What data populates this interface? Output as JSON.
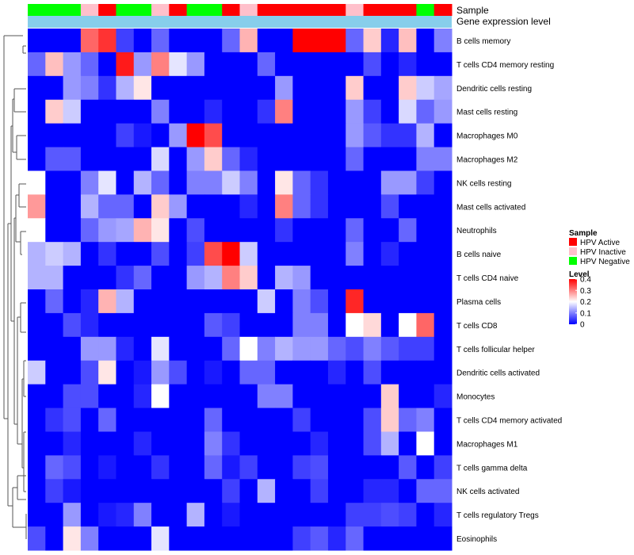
{
  "chart_data": {
    "type": "heatmap",
    "title": "",
    "annotation_track_labels": [
      "Sample",
      "Gene expression level"
    ],
    "sample_groups": [
      "HPV Negative",
      "HPV Negative",
      "HPV Negative",
      "HPV Inactive",
      "HPV Active",
      "HPV Negative",
      "HPV Negative",
      "HPV Inactive",
      "HPV Active",
      "HPV Negative",
      "HPV Negative",
      "HPV Active",
      "HPV Inactive",
      "HPV Active",
      "HPV Active",
      "HPV Active",
      "HPV Active",
      "HPV Active",
      "HPV Inactive",
      "HPV Active",
      "HPV Active",
      "HPV Active",
      "HPV Negative",
      "HPV Active"
    ],
    "sample_colors": {
      "HPV Active": "#ff0000",
      "HPV Inactive": "#ffc0cb",
      "HPV Negative": "#00ff00"
    },
    "expression_track_color": "#87ceeb",
    "rows": [
      "B cells memory",
      "T cells CD4 memory resting",
      "Dendritic cells resting",
      "Mast cells resting",
      "Macrophages M0",
      "Macrophages M2",
      "NK cells resting",
      "Mast cells activated",
      "Neutrophils",
      "B cells naive",
      "T cells CD4 naive",
      "Plasma cells",
      "T cells CD8",
      "T cells follicular helper",
      "Dendritic cells activated",
      "Monocytes",
      "T cells CD4 memory activated",
      "Macrophages M1",
      "T cells gamma delta",
      "NK cells activated",
      "T cells regulatory  Tregs",
      "Eosinophils"
    ],
    "values": [
      [
        0,
        0,
        0,
        0.32,
        0.36,
        0.05,
        0,
        0.08,
        0,
        0,
        0,
        0.08,
        0.26,
        0,
        0,
        0.4,
        0.4,
        0.4,
        0.08,
        0.24,
        0.03,
        0.25,
        0,
        0.1
      ],
      [
        0.08,
        0.25,
        0.12,
        0.08,
        0,
        0.38,
        0.12,
        0.3,
        0.18,
        0.12,
        0,
        0,
        0,
        0.08,
        0,
        0,
        0,
        0,
        0,
        0.06,
        0,
        0.03,
        0,
        0
      ],
      [
        0,
        0,
        0.12,
        0.1,
        0.04,
        0.14,
        0.22,
        0,
        0,
        0,
        0,
        0,
        0,
        0,
        0.12,
        0,
        0,
        0,
        0.24,
        0,
        0,
        0.24,
        0.16,
        0.13
      ],
      [
        0,
        0.24,
        0.16,
        0,
        0,
        0,
        0,
        0.1,
        0,
        0,
        0.03,
        0,
        0,
        0.04,
        0.3,
        0,
        0,
        0,
        0.12,
        0.05,
        0,
        0.17,
        0.08,
        0.12
      ],
      [
        0,
        0,
        0,
        0,
        0,
        0.05,
        0.02,
        0,
        0.12,
        0.4,
        0.34,
        0,
        0,
        0,
        0,
        0,
        0,
        0,
        0.12,
        0.07,
        0.04,
        0.04,
        0.14,
        0
      ],
      [
        0,
        0.07,
        0.07,
        0,
        0,
        0,
        0,
        0.17,
        0,
        0.12,
        0.24,
        0.08,
        0.03,
        0,
        0,
        0,
        0,
        0,
        0.08,
        0,
        0,
        0,
        0.1,
        0.1
      ],
      [
        0.2,
        0,
        0,
        0.1,
        0.18,
        0,
        0.14,
        0.08,
        0,
        0.1,
        0.1,
        0.16,
        0.1,
        0,
        0.22,
        0.08,
        0.04,
        0,
        0,
        0,
        0.12,
        0.12,
        0.05,
        0
      ],
      [
        0.28,
        0,
        0,
        0.14,
        0.08,
        0.08,
        0,
        0.24,
        0.12,
        0,
        0,
        0,
        0.03,
        0,
        0.3,
        0.08,
        0.04,
        0,
        0,
        0,
        0.06,
        0,
        0,
        0
      ],
      [
        0.2,
        0,
        0,
        0.08,
        0.12,
        0.13,
        0.26,
        0.22,
        0,
        0.06,
        0,
        0,
        0,
        0,
        0.04,
        0,
        0,
        0,
        0.08,
        0,
        0,
        0.08,
        0,
        0
      ],
      [
        0.14,
        0.16,
        0.14,
        0,
        0.04,
        0,
        0,
        0.06,
        0,
        0.05,
        0.34,
        0.4,
        0.16,
        0,
        0,
        0,
        0,
        0,
        0.1,
        0,
        0.03,
        0,
        0,
        0
      ],
      [
        0.14,
        0.14,
        0,
        0,
        0,
        0.04,
        0.08,
        0,
        0,
        0.12,
        0.14,
        0.3,
        0.24,
        0,
        0.14,
        0.12,
        0,
        0,
        0,
        0,
        0,
        0,
        0,
        0
      ],
      [
        0,
        0.08,
        0,
        0.03,
        0.26,
        0.14,
        0,
        0,
        0,
        0,
        0,
        0,
        0,
        0.16,
        0,
        0.1,
        0.06,
        0,
        0.37,
        0,
        0,
        0,
        0,
        0
      ],
      [
        0,
        0,
        0.06,
        0.03,
        0,
        0,
        0,
        0,
        0,
        0,
        0.07,
        0.05,
        0,
        0,
        0,
        0.1,
        0.1,
        0,
        0.2,
        0.23,
        0,
        0.2,
        0.32,
        0
      ],
      [
        0,
        0,
        0,
        0.12,
        0.12,
        0.03,
        0,
        0.18,
        0,
        0,
        0,
        0.08,
        0.2,
        0.1,
        0.14,
        0.12,
        0.12,
        0.08,
        0.06,
        0.1,
        0.07,
        0.05,
        0.05,
        0
      ],
      [
        0.16,
        0,
        0,
        0.06,
        0.22,
        0,
        0.02,
        0.12,
        0.06,
        0,
        0.02,
        0,
        0.08,
        0.08,
        0,
        0,
        0,
        0.03,
        0,
        0.06,
        0,
        0,
        0,
        0
      ],
      [
        0,
        0,
        0.06,
        0.06,
        0,
        0,
        0.03,
        0.2,
        0,
        0,
        0,
        0,
        0,
        0.1,
        0.1,
        0,
        0,
        0,
        0,
        0,
        0.24,
        0,
        0,
        0.03
      ],
      [
        0,
        0.04,
        0.06,
        0,
        0.08,
        0,
        0,
        0,
        0,
        0,
        0.08,
        0,
        0,
        0,
        0,
        0.05,
        0,
        0,
        0,
        0.06,
        0.24,
        0.08,
        0.1,
        0
      ],
      [
        0,
        0,
        0.03,
        0,
        0,
        0,
        0.03,
        0,
        0,
        0,
        0.1,
        0.04,
        0,
        0,
        0,
        0,
        0.03,
        0,
        0,
        0.06,
        0.14,
        0,
        0.2,
        0
      ],
      [
        0,
        0.08,
        0.06,
        0,
        0.02,
        0,
        0,
        0.04,
        0,
        0,
        0.08,
        0.02,
        0.05,
        0,
        0,
        0.05,
        0.06,
        0,
        0,
        0,
        0,
        0.07,
        0,
        0.05
      ],
      [
        0,
        0.05,
        0.02,
        0,
        0,
        0,
        0,
        0,
        0,
        0,
        0,
        0.05,
        0,
        0.14,
        0,
        0,
        0.05,
        0,
        0,
        0.03,
        0.03,
        0,
        0.08,
        0.08
      ],
      [
        0,
        0,
        0.12,
        0,
        0.02,
        0.03,
        0.1,
        0,
        0,
        0.14,
        0,
        0.02,
        0,
        0,
        0,
        0,
        0,
        0,
        0.05,
        0.05,
        0.06,
        0.05,
        0,
        0.03
      ],
      [
        0.06,
        0,
        0.22,
        0.1,
        0,
        0,
        0,
        0.18,
        0,
        0,
        0,
        0,
        0,
        0,
        0,
        0.05,
        0.07,
        0.03,
        0.08,
        0,
        0,
        0,
        0,
        0
      ]
    ],
    "legend": {
      "sample_title": "Sample",
      "sample_entries": [
        "HPV Active",
        "HPV Inactive",
        "HPV Negative"
      ],
      "level_title": "Level",
      "level_ticks": [
        "0.4",
        "0.3",
        "0.2",
        "0.1",
        "0"
      ],
      "color_scale": {
        "low": "#0000ff",
        "mid": "#ffffff",
        "high": "#ff0000",
        "min": 0,
        "mid_value": 0.2,
        "max": 0.4
      }
    }
  }
}
